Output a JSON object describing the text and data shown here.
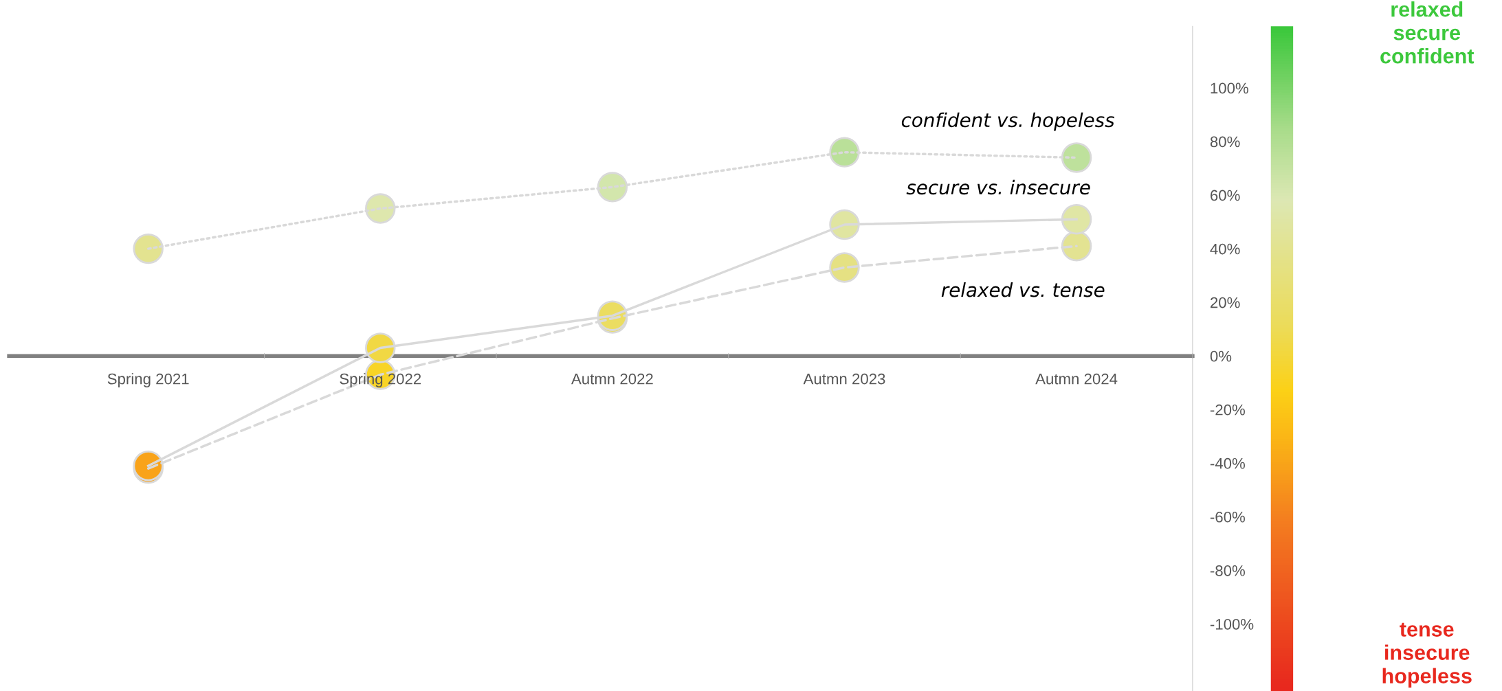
{
  "chart_data": {
    "type": "line",
    "categories": [
      "Spring 2021",
      "Spring 2022",
      "Autmn 2022",
      "Autmn 2023",
      "Autmn 2024"
    ],
    "series": [
      {
        "name": "confident vs. hopeless",
        "color": "#d9d9d9",
        "line_style": "dotted",
        "values": [
          40,
          55,
          63,
          76,
          74
        ]
      },
      {
        "name": "secure vs. insecure",
        "color": "#d9d9d9",
        "line_style": "solid",
        "values": [
          -41,
          3,
          15,
          49,
          51
        ]
      },
      {
        "name": "relaxed vs. tense",
        "color": "#d9d9d9",
        "line_style": "dashed",
        "values": [
          -42,
          -7,
          14,
          33,
          41
        ]
      }
    ],
    "marker": "circle",
    "ylim": [
      -125,
      123
    ],
    "yticks": [
      {
        "value": -100,
        "label": "-100%"
      },
      {
        "value": -80,
        "label": "-80%"
      },
      {
        "value": -60,
        "label": "-60%"
      },
      {
        "value": -40,
        "label": "-40%"
      },
      {
        "value": -20,
        "label": "-20%"
      },
      {
        "value": 0,
        "label": "0%"
      },
      {
        "value": 20,
        "label": "20%"
      },
      {
        "value": 40,
        "label": "40%"
      },
      {
        "value": 60,
        "label": "60%"
      },
      {
        "value": 80,
        "label": "80%"
      },
      {
        "value": 100,
        "label": "100%"
      }
    ],
    "annotations": [
      "relaxed\nsecure\nconfident",
      "tense\ninsecure\nhopeless"
    ],
    "grid": false,
    "legend": false
  }
}
